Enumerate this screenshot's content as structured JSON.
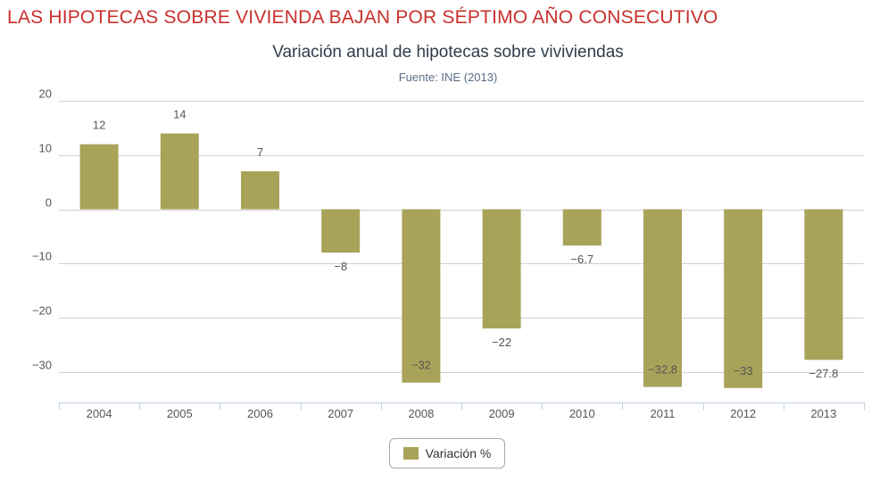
{
  "headline": "LAS HIPOTECAS SOBRE VIVIENDA BAJAN POR SÉPTIMO AÑO CONSECUTIVO",
  "colors": {
    "bar": "#a9a35a",
    "headline": "#c8302c",
    "grid": "#d0d0d0",
    "axis": "#c0d0e0"
  },
  "chart_data": {
    "type": "bar",
    "title": "Variación anual de hipotecas sobre viviviendas",
    "subtitle": "Fuente: INE (2013)",
    "categories": [
      "2004",
      "2005",
      "2006",
      "2007",
      "2008",
      "2009",
      "2010",
      "2011",
      "2012",
      "2013"
    ],
    "series": [
      {
        "name": "Variación %",
        "values": [
          12,
          14,
          7,
          -8,
          -32,
          -22,
          -6.7,
          -32.8,
          -33,
          -27.8
        ]
      }
    ],
    "data_labels": [
      "12",
      "14",
      "7",
      "−8",
      "−32",
      "−22",
      "−6.7",
      "−32.8",
      "−33",
      "−27.8"
    ],
    "yticks": [
      20,
      10,
      0,
      -10,
      -20,
      -30
    ],
    "ytick_labels": [
      "20",
      "10",
      "0",
      "−10",
      "−20",
      "−30"
    ],
    "ylim": [
      -35,
      20
    ],
    "grid": true,
    "legend": "bottom-center"
  }
}
